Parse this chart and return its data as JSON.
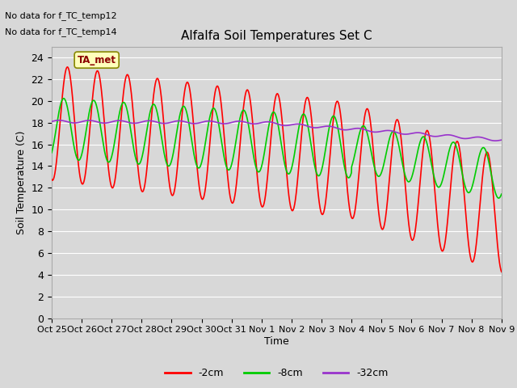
{
  "title": "Alfalfa Soil Temperatures Set C",
  "ylabel": "Soil Temperature (C)",
  "xlabel": "Time",
  "no_data_text": [
    "No data for f_TC_temp12",
    "No data for f_TC_temp14"
  ],
  "ta_met_label": "TA_met",
  "legend_labels": [
    "-2cm",
    "-8cm",
    "-32cm"
  ],
  "legend_colors": [
    "#ff0000",
    "#00cc00",
    "#9933cc"
  ],
  "ylim": [
    0,
    25
  ],
  "yticks": [
    0,
    2,
    4,
    6,
    8,
    10,
    12,
    14,
    16,
    18,
    20,
    22,
    24
  ],
  "background_color": "#d8d8d8",
  "axes_bg_color": "#d8d8d8",
  "grid_color": "#ffffff",
  "x_tick_labels": [
    "Oct 25",
    "Oct 26",
    "Oct 27",
    "Oct 28",
    "Oct 29",
    "Oct 30",
    "Oct 31",
    "Nov 1",
    "Nov 2",
    "Nov 3",
    "Nov 4",
    "Nov 5",
    "Nov 6",
    "Nov 7",
    "Nov 8",
    "Nov 9"
  ]
}
